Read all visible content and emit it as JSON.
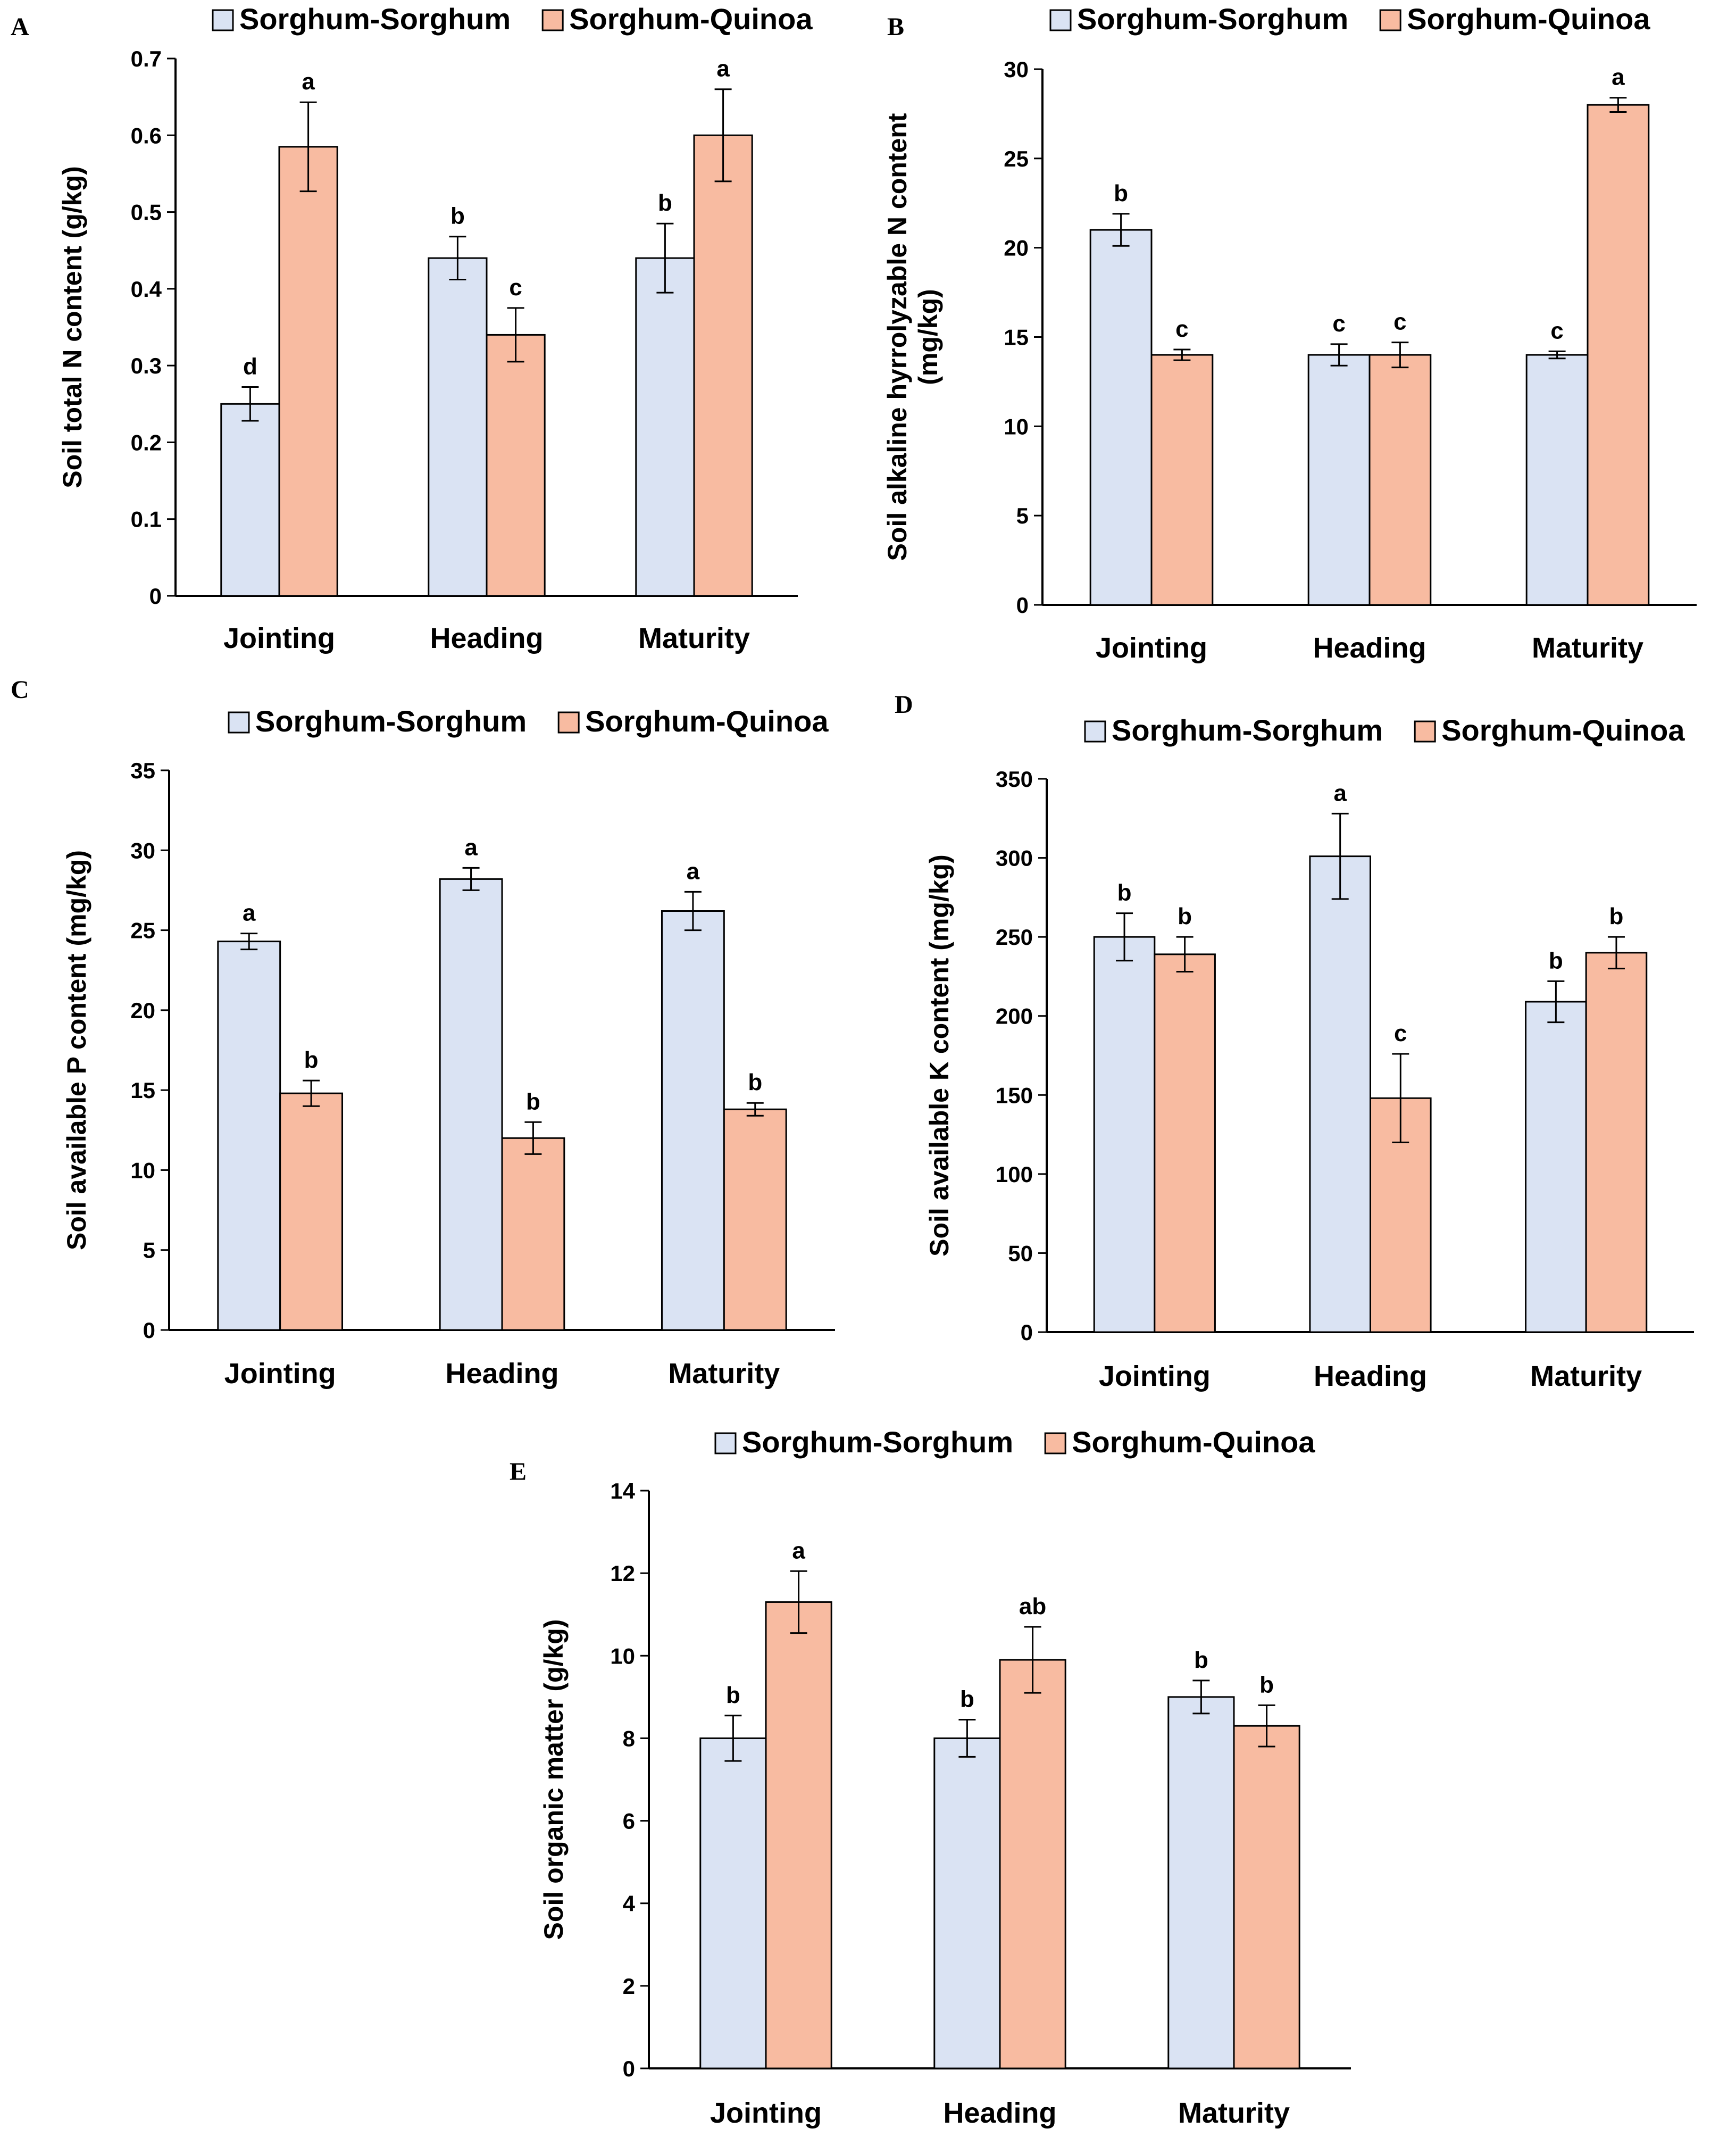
{
  "colors": {
    "series1": "#dae3f3",
    "series2": "#f8bba1",
    "axis": "#000000"
  },
  "series_names": [
    "Sorghum-Sorghum",
    "Sorghum-Quinoa"
  ],
  "chart_data": [
    {
      "panel": "A",
      "type": "bar",
      "ylabel": [
        "Soil total N content (g/kg)"
      ],
      "categories": [
        "Jointing",
        "Heading",
        "Maturity"
      ],
      "ylim": [
        0,
        0.7
      ],
      "yticks": [
        0,
        0.1,
        0.2,
        0.3,
        0.4,
        0.5,
        0.6,
        0.7
      ],
      "series": [
        {
          "name": "Sorghum-Sorghum",
          "values": [
            0.25,
            0.44,
            0.44
          ],
          "errors": [
            0.022,
            0.028,
            0.045
          ],
          "letters": [
            "d",
            "b",
            "b"
          ]
        },
        {
          "name": "Sorghum-Quinoa",
          "values": [
            0.585,
            0.34,
            0.6
          ],
          "errors": [
            0.058,
            0.035,
            0.06
          ],
          "letters": [
            "a",
            "c",
            "a"
          ]
        }
      ]
    },
    {
      "panel": "B",
      "type": "bar",
      "ylabel": [
        "Soil alkaline hyrrolyzable N content",
        "(mg/kg)"
      ],
      "categories": [
        "Jointing",
        "Heading",
        "Maturity"
      ],
      "ylim": [
        0,
        30
      ],
      "yticks": [
        0,
        5,
        10,
        15,
        20,
        25,
        30
      ],
      "series": [
        {
          "name": "Sorghum-Sorghum",
          "values": [
            21.0,
            14.0,
            14.0
          ],
          "errors": [
            0.9,
            0.6,
            0.2
          ],
          "letters": [
            "b",
            "c",
            "c"
          ]
        },
        {
          "name": "Sorghum-Quinoa",
          "values": [
            14.0,
            14.0,
            28.0
          ],
          "errors": [
            0.3,
            0.7,
            0.4
          ],
          "letters": [
            "c",
            "c",
            "a"
          ]
        }
      ]
    },
    {
      "panel": "C",
      "type": "bar",
      "ylabel": [
        "Soil available P content (mg/kg)"
      ],
      "categories": [
        "Jointing",
        "Heading",
        "Maturity"
      ],
      "ylim": [
        0,
        35
      ],
      "yticks": [
        0,
        5,
        10,
        15,
        20,
        25,
        30,
        35
      ],
      "series": [
        {
          "name": "Sorghum-Sorghum",
          "values": [
            24.3,
            28.2,
            26.2
          ],
          "errors": [
            0.5,
            0.7,
            1.2
          ],
          "letters": [
            "a",
            "a",
            "a"
          ]
        },
        {
          "name": "Sorghum-Quinoa",
          "values": [
            14.8,
            12.0,
            13.8
          ],
          "errors": [
            0.8,
            1.0,
            0.4
          ],
          "letters": [
            "b",
            "b",
            "b"
          ]
        }
      ]
    },
    {
      "panel": "D",
      "type": "bar",
      "ylabel": [
        "Soil available K content (mg/kg)"
      ],
      "categories": [
        "Jointing",
        "Heading",
        "Maturity"
      ],
      "ylim": [
        0,
        350
      ],
      "yticks": [
        0,
        50,
        100,
        150,
        200,
        250,
        300,
        350
      ],
      "series": [
        {
          "name": "Sorghum-Sorghum",
          "values": [
            250,
            301,
            209
          ],
          "errors": [
            15,
            27,
            13
          ],
          "letters": [
            "b",
            "a",
            "b"
          ]
        },
        {
          "name": "Sorghum-Quinoa",
          "values": [
            239,
            148,
            240
          ],
          "errors": [
            11,
            28,
            10
          ],
          "letters": [
            "b",
            "c",
            "b"
          ]
        }
      ]
    },
    {
      "panel": "E",
      "type": "bar",
      "ylabel": [
        "Soil organic matter (g/kg)"
      ],
      "categories": [
        "Jointing",
        "Heading",
        "Maturity"
      ],
      "ylim": [
        0,
        14
      ],
      "yticks": [
        0,
        2,
        4,
        6,
        8,
        10,
        12,
        14
      ],
      "series": [
        {
          "name": "Sorghum-Sorghum",
          "values": [
            8.0,
            8.0,
            9.0
          ],
          "errors": [
            0.55,
            0.45,
            0.4
          ],
          "letters": [
            "b",
            "b",
            "b"
          ]
        },
        {
          "name": "Sorghum-Quinoa",
          "values": [
            11.3,
            9.9,
            8.3
          ],
          "errors": [
            0.75,
            0.8,
            0.5
          ],
          "letters": [
            "a",
            "ab",
            "b"
          ]
        }
      ]
    }
  ]
}
